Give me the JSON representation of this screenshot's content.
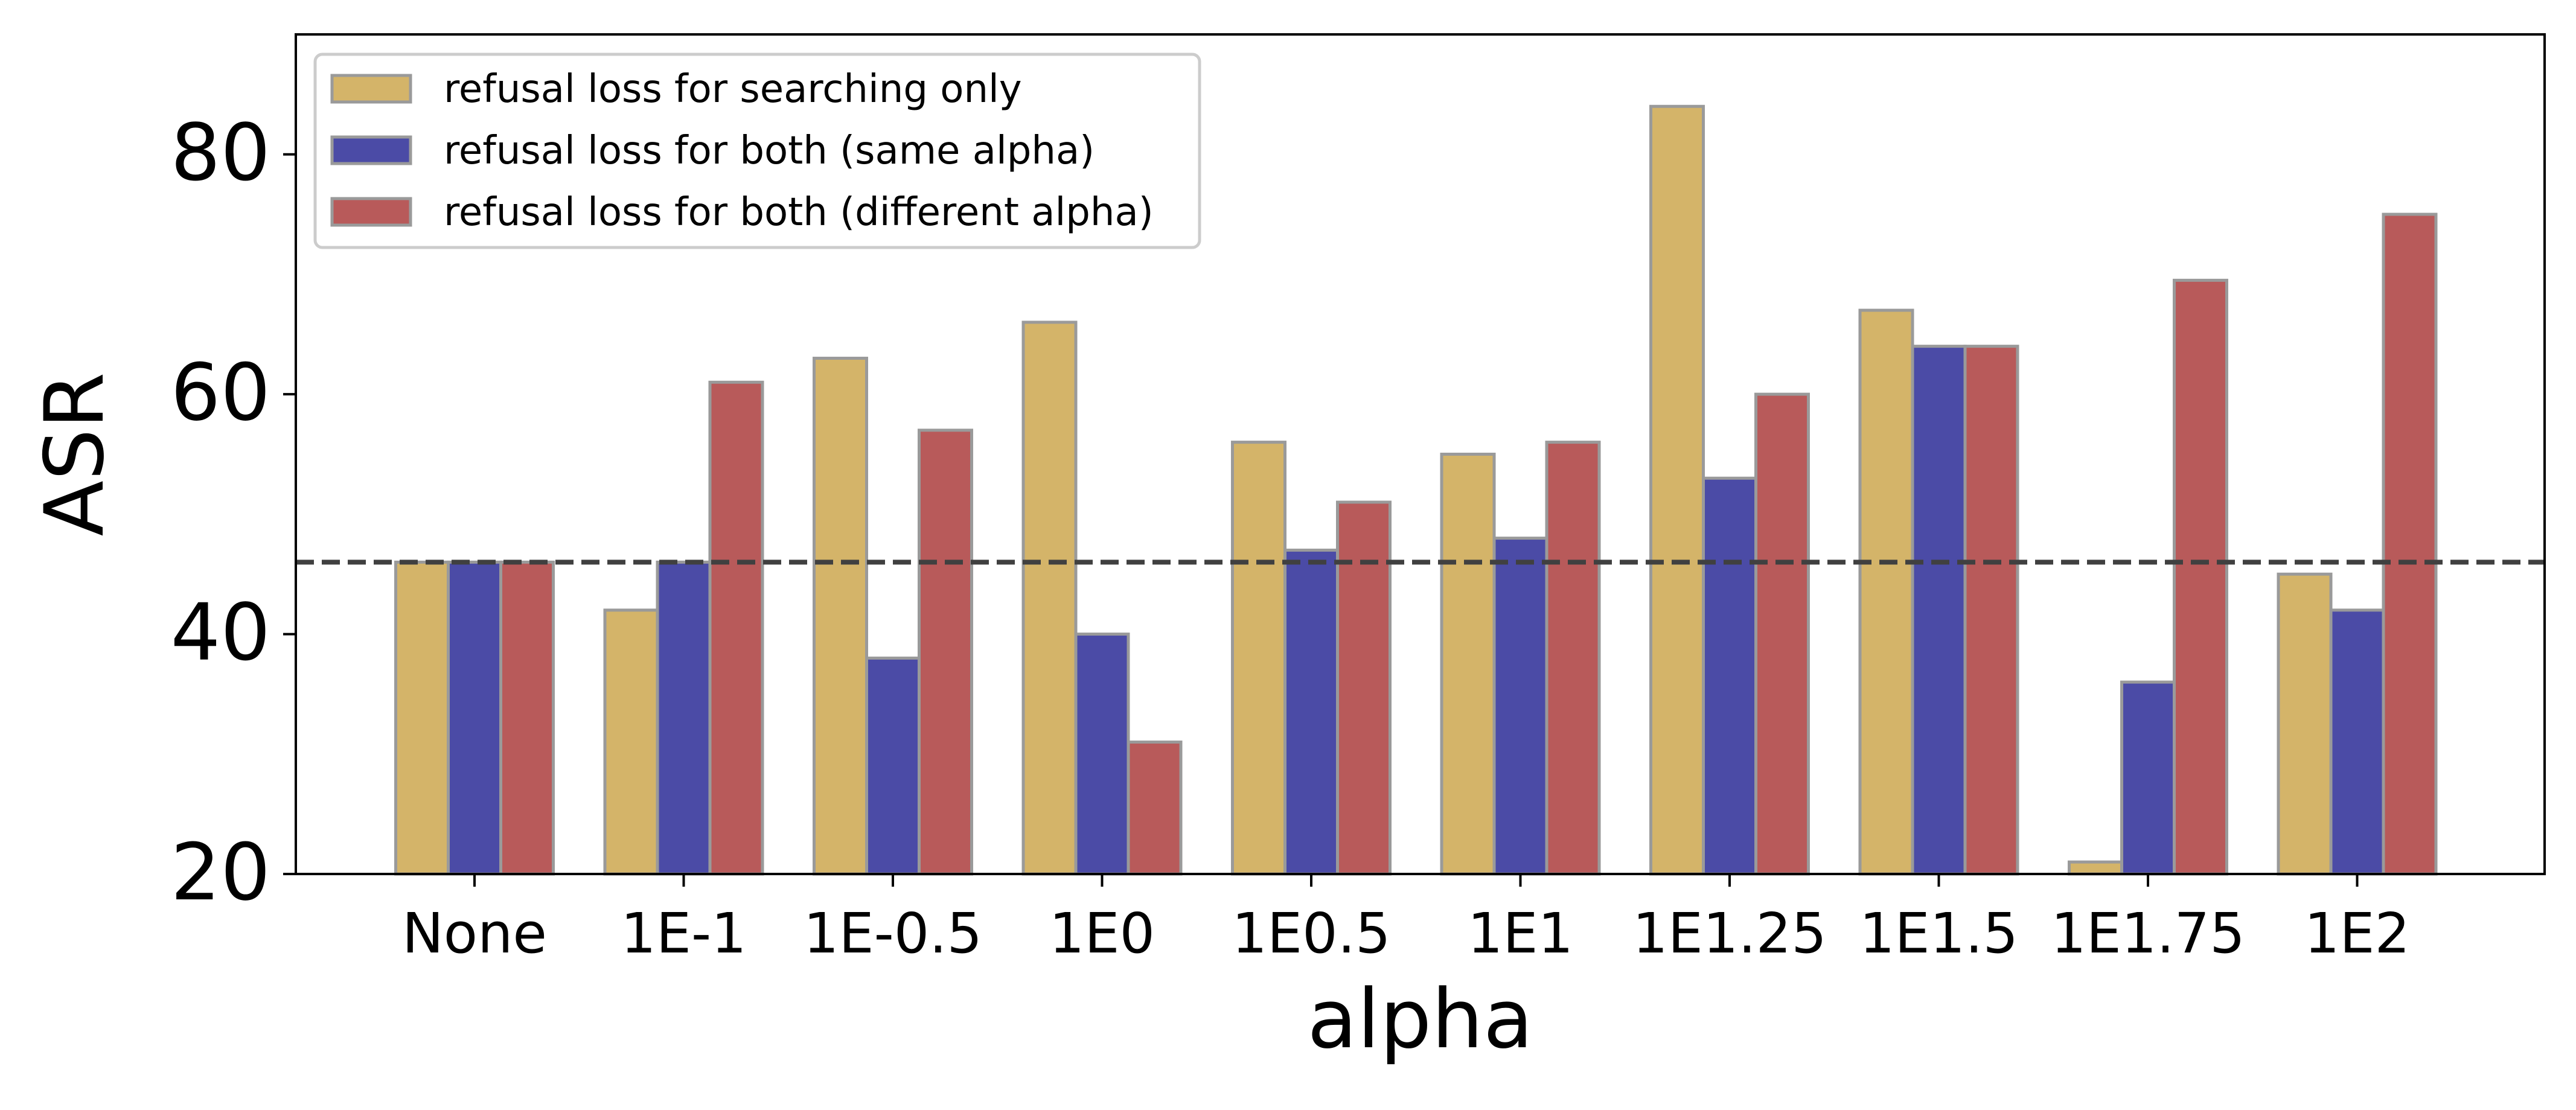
{
  "chart_data": {
    "type": "bar",
    "title": "",
    "xlabel": "alpha",
    "ylabel": "ASR",
    "categories": [
      "None",
      "1E-1",
      "1E-0.5",
      "1E0",
      "1E0.5",
      "1E1",
      "1E1.25",
      "1E1.5",
      "1E1.75",
      "1E2"
    ],
    "series": [
      {
        "name": "refusal loss for searching only",
        "color": "#d4b469",
        "values": [
          46,
          42,
          63,
          66,
          56,
          55,
          84,
          67,
          21,
          45
        ]
      },
      {
        "name": "refusal loss for both (same alpha)",
        "color": "#4b4ba6",
        "values": [
          46,
          46,
          38,
          40,
          47,
          48,
          53,
          64,
          36,
          42
        ]
      },
      {
        "name": "refusal loss for both (different alpha)",
        "color": "#b85a5a",
        "values": [
          46,
          61,
          57,
          31,
          51,
          56,
          60,
          64,
          69.5,
          75
        ]
      }
    ],
    "ylim": [
      20,
      90
    ],
    "yticks": [
      20,
      40,
      60,
      80
    ],
    "baseline": {
      "value": 46,
      "style": "dashed",
      "color": "#404040"
    },
    "legend_position": "top-left",
    "grid": false
  }
}
